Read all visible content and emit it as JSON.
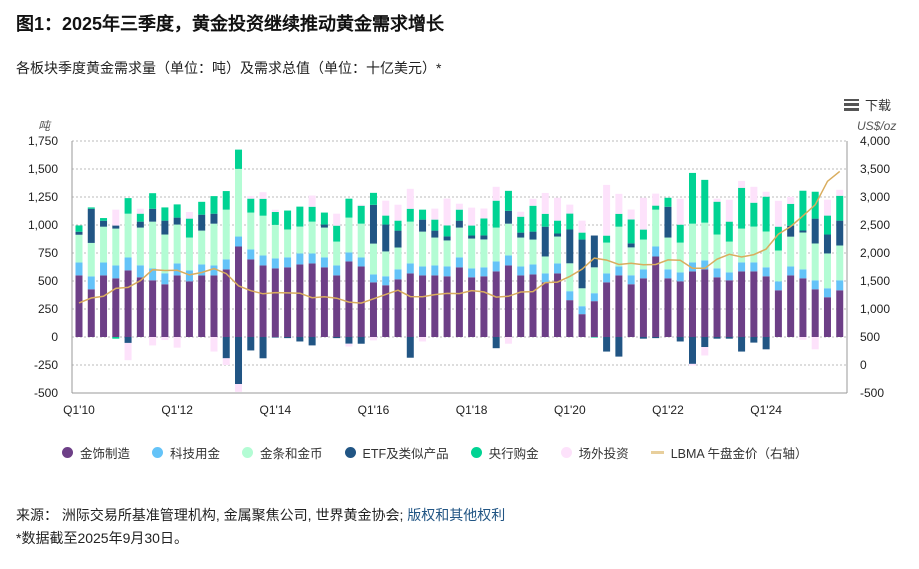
{
  "title": "图1：2025年三季度，黄金投资继续推动黄金需求增长",
  "subtitle": "各板块季度黄金需求量（单位：吨）及需求总值（单位：十亿美元）*",
  "download_label": "下载",
  "source_label": "来源：",
  "source_text": " 洲际交易所基准管理机构, 金属聚焦公司, 世界黄金协会; ",
  "source_link": "版权和其他权利",
  "note": "*数据截至2025年9月30日。",
  "colors": {
    "jewellery": "#6d3f87",
    "technology": "#64c3f8",
    "bar_coin": "#b3fcd4",
    "etf": "#215584",
    "central_banks": "#00d393",
    "otc": "#fde2fb",
    "gold_price": "#d9ad5e"
  },
  "chart_data": {
    "type": "bar",
    "stacked": true,
    "ylabel_left": "吨",
    "ylabel_right": "US$/oz",
    "ylim_left": [
      -500,
      1750
    ],
    "ylim_right": [
      -500,
      4000
    ],
    "yticks_left": [
      "1,750",
      "1,500",
      "1,250",
      "1,000",
      "750",
      "500",
      "250",
      "0",
      "-250",
      "-500"
    ],
    "yticks_right": [
      "4,000",
      "3,500",
      "3,000",
      "2,500",
      "2,000",
      "1,500",
      "1,000",
      "500",
      "0",
      "-500"
    ],
    "xtick_labels": [
      "Q1'10",
      "Q1'12",
      "Q1'14",
      "Q1'16",
      "Q1'18",
      "Q1'20",
      "Q1'22",
      "Q1'24"
    ],
    "grid": true,
    "legend_position": "bottom",
    "categories": [
      "Q1'10",
      "Q2'10",
      "Q3'10",
      "Q4'10",
      "Q1'11",
      "Q2'11",
      "Q3'11",
      "Q4'11",
      "Q1'12",
      "Q2'12",
      "Q3'12",
      "Q4'12",
      "Q1'13",
      "Q2'13",
      "Q3'13",
      "Q4'13",
      "Q1'14",
      "Q2'14",
      "Q3'14",
      "Q4'14",
      "Q1'15",
      "Q2'15",
      "Q3'15",
      "Q4'15",
      "Q1'16",
      "Q2'16",
      "Q3'16",
      "Q4'16",
      "Q1'17",
      "Q2'17",
      "Q3'17",
      "Q4'17",
      "Q1'18",
      "Q2'18",
      "Q3'18",
      "Q4'18",
      "Q1'19",
      "Q2'19",
      "Q3'19",
      "Q4'19",
      "Q1'20",
      "Q2'20",
      "Q3'20",
      "Q4'20",
      "Q1'21",
      "Q2'21",
      "Q3'21",
      "Q4'21",
      "Q1'22",
      "Q2'22",
      "Q3'22",
      "Q4'22",
      "Q1'23",
      "Q2'23",
      "Q3'23",
      "Q4'23",
      "Q1'24",
      "Q2'24",
      "Q3'24",
      "Q4'24",
      "Q1'25",
      "Q2'25",
      "Q3'25"
    ],
    "series": [
      {
        "name": "金饰制造",
        "key": "jewellery",
        "values": [
          550,
          426,
          550,
          524,
          595,
          533,
          506,
          471,
          550,
          497,
          550,
          550,
          604,
          808,
          693,
          639,
          613,
          622,
          648,
          657,
          622,
          550,
          675,
          630,
          488,
          462,
          515,
          568,
          550,
          550,
          542,
          622,
          533,
          542,
          586,
          639,
          550,
          559,
          488,
          568,
          329,
          204,
          320,
          488,
          550,
          471,
          524,
          719,
          524,
          497,
          586,
          604,
          533,
          506,
          586,
          586,
          542,
          417,
          550,
          524,
          426,
          355,
          417
        ]
      },
      {
        "name": "科技用金",
        "key": "technology",
        "values": [
          115,
          115,
          115,
          115,
          115,
          107,
          107,
          98,
          107,
          98,
          98,
          89,
          89,
          89,
          89,
          89,
          89,
          89,
          98,
          89,
          89,
          89,
          80,
          80,
          71,
          80,
          89,
          89,
          80,
          89,
          89,
          89,
          80,
          80,
          89,
          89,
          80,
          89,
          80,
          89,
          80,
          71,
          71,
          80,
          80,
          80,
          80,
          89,
          80,
          80,
          80,
          80,
          80,
          71,
          80,
          80,
          80,
          80,
          80,
          80,
          80,
          80,
          89
        ]
      },
      {
        "name": "金条和金币",
        "key": "bar_coin",
        "values": [
          248,
          299,
          320,
          329,
          391,
          337,
          417,
          346,
          347,
          293,
          302,
          373,
          444,
          604,
          329,
          355,
          299,
          249,
          240,
          284,
          266,
          213,
          311,
          302,
          275,
          222,
          195,
          373,
          311,
          249,
          231,
          266,
          266,
          249,
          302,
          284,
          258,
          222,
          151,
          240,
          249,
          160,
          231,
          275,
          355,
          249,
          266,
          329,
          284,
          266,
          346,
          337,
          302,
          275,
          302,
          320,
          320,
          275,
          266,
          329,
          329,
          311,
          311
        ]
      },
      {
        "name": "ETF及类似产品",
        "key": "etf",
        "values": [
          27,
          305,
          53,
          27,
          -53,
          53,
          115,
          124,
          62,
          0,
          142,
          89,
          -190,
          -420,
          -120,
          -190,
          -5,
          -10,
          -40,
          -75,
          27,
          -10,
          -60,
          -60,
          346,
          240,
          151,
          -185,
          107,
          62,
          36,
          62,
          27,
          36,
          -100,
          115,
          44,
          71,
          266,
          27,
          302,
          435,
          284,
          -130,
          -175,
          36,
          -15,
          -10,
          275,
          -40,
          -240,
          -90,
          -15,
          -15,
          -130,
          -50,
          -110,
          0,
          98,
          18,
          222,
          169,
          222
        ]
      },
      {
        "name": "央行购金",
        "key": "central_banks",
        "values": [
          56,
          12,
          24,
          -15,
          139,
          71,
          139,
          118,
          118,
          169,
          115,
          157,
          166,
          172,
          124,
          151,
          115,
          169,
          178,
          133,
          107,
          142,
          169,
          160,
          107,
          80,
          89,
          115,
          89,
          98,
          98,
          98,
          89,
          151,
          240,
          178,
          142,
          231,
          115,
          115,
          142,
          62,
          -5,
          62,
          115,
          213,
          89,
          36,
          80,
          160,
          453,
          382,
          293,
          178,
          364,
          213,
          311,
          213,
          195,
          355,
          240,
          169,
          222
        ]
      },
      {
        "name": "场外投资",
        "key": "otc",
        "values": [
          0,
          0,
          0,
          142,
          -154,
          44,
          -75,
          -27,
          -95,
          59,
          0,
          -130,
          -60,
          -70,
          24,
          59,
          20,
          0,
          0,
          100,
          0,
          107,
          -25,
          9,
          -30,
          133,
          142,
          178,
          -40,
          98,
          240,
          53,
          160,
          89,
          124,
          -60,
          44,
          62,
          186,
          204,
          80,
          107,
          0,
          453,
          178,
          89,
          284,
          107,
          0,
          231,
          -15,
          -75,
          27,
          195,
          62,
          142,
          44,
          231,
          62,
          -25,
          -110,
          142,
          53
        ]
      }
    ],
    "line_series": {
      "name": "LBMA 午盘金价（右轴）",
      "key": "gold_price",
      "axis": "right",
      "values": [
        1109,
        1197,
        1227,
        1367,
        1386,
        1506,
        1702,
        1688,
        1691,
        1609,
        1652,
        1722,
        1632,
        1415,
        1326,
        1272,
        1293,
        1288,
        1282,
        1201,
        1218,
        1192,
        1124,
        1106,
        1183,
        1260,
        1335,
        1222,
        1219,
        1257,
        1278,
        1275,
        1329,
        1306,
        1213,
        1226,
        1304,
        1310,
        1472,
        1481,
        1583,
        1711,
        1909,
        1874,
        1794,
        1816,
        1789,
        1795,
        1877,
        1871,
        1729,
        1726,
        1890,
        1976,
        1929,
        1971,
        2070,
        2338,
        2474,
        2663,
        2860,
        3280,
        3457
      ]
    }
  }
}
